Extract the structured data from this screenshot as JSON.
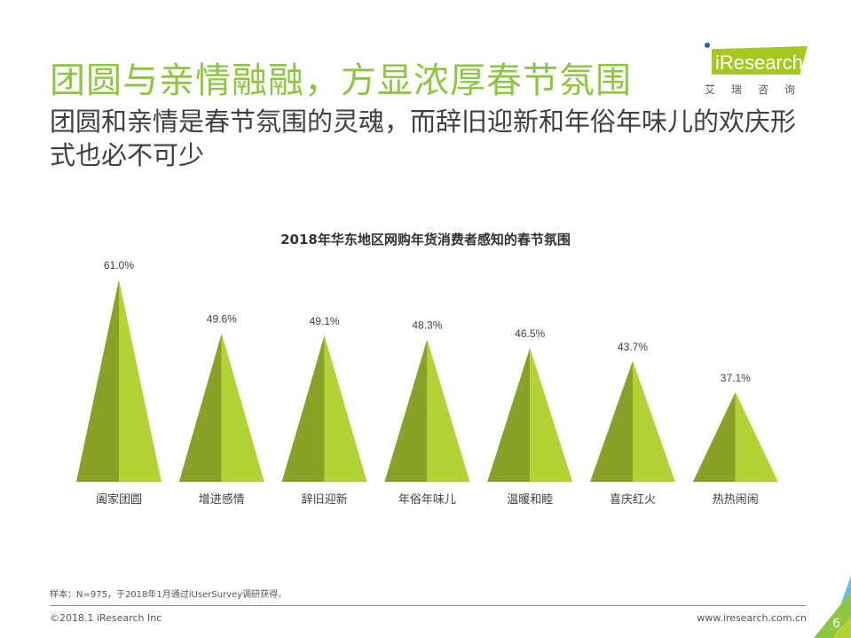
{
  "header": {
    "title": "团圆与亲情融融，方显浓厚春节氛围",
    "subtitle": "团圆和亲情是春节氛围的灵魂，而辞旧迎新和年俗年味儿的欢庆形式也必不可少"
  },
  "logo": {
    "text": "iResearch",
    "cn": "艾瑞咨询"
  },
  "chart_data": {
    "type": "bar",
    "title": "2018年华东地区网购年货消费者感知的春节氛围",
    "categories": [
      "阖家团圆",
      "增进感情",
      "辞旧迎新",
      "年俗年味儿",
      "温暖和睦",
      "喜庆红火",
      "热热闹闹"
    ],
    "values": [
      61.0,
      49.6,
      49.1,
      48.3,
      46.5,
      43.7,
      37.1
    ],
    "labels": [
      "61.0%",
      "49.6%",
      "49.1%",
      "48.3%",
      "46.5%",
      "43.7%",
      "37.1%"
    ],
    "mark": "triangle",
    "colors": {
      "dark": "#8aa127",
      "light": "#b3d234"
    }
  },
  "footer": {
    "note": "样本：N=975，于2018年1月通过iUserSurvey调研获得。",
    "copyright": "©2018.1 iResearch Inc",
    "url": "www.iresearch.com.cn",
    "page": "6"
  }
}
